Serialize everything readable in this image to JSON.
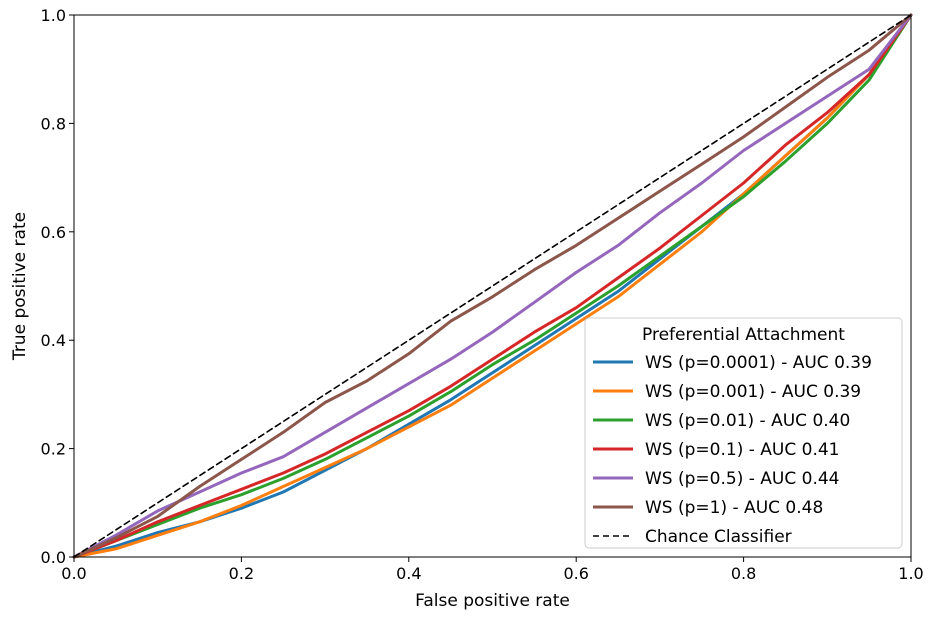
{
  "chart_data": {
    "type": "line",
    "xlabel": "False positive rate",
    "ylabel": "True positive rate",
    "xlim": [
      0.0,
      1.0
    ],
    "ylim": [
      0.0,
      1.0
    ],
    "xticks": [
      "0.0",
      "0.2",
      "0.4",
      "0.6",
      "0.8",
      "1.0"
    ],
    "yticks": [
      "0.0",
      "0.2",
      "0.4",
      "0.6",
      "0.8",
      "1.0"
    ],
    "grid": false,
    "legend": {
      "title": "Preferential Attachment",
      "placement": "lower-right"
    },
    "series": [
      {
        "name": "WS (p=0.0001) - AUC 0.39",
        "color": "#1f77b4",
        "style": "solid",
        "x": [
          0,
          0.05,
          0.1,
          0.15,
          0.2,
          0.25,
          0.3,
          0.35,
          0.4,
          0.45,
          0.5,
          0.55,
          0.6,
          0.65,
          0.7,
          0.75,
          0.8,
          0.85,
          0.9,
          0.95,
          1.0
        ],
        "y": [
          0,
          0.02,
          0.045,
          0.065,
          0.09,
          0.12,
          0.16,
          0.2,
          0.245,
          0.29,
          0.34,
          0.39,
          0.44,
          0.49,
          0.55,
          0.61,
          0.67,
          0.74,
          0.81,
          0.89,
          1.0
        ]
      },
      {
        "name": "WS (p=0.001) - AUC 0.39",
        "color": "#ff7f0e",
        "style": "solid",
        "x": [
          0,
          0.05,
          0.1,
          0.15,
          0.2,
          0.25,
          0.3,
          0.35,
          0.4,
          0.45,
          0.5,
          0.55,
          0.6,
          0.65,
          0.7,
          0.75,
          0.8,
          0.85,
          0.9,
          0.95,
          1.0
        ],
        "y": [
          0,
          0.015,
          0.04,
          0.065,
          0.095,
          0.13,
          0.165,
          0.2,
          0.24,
          0.28,
          0.33,
          0.38,
          0.43,
          0.48,
          0.54,
          0.6,
          0.67,
          0.74,
          0.81,
          0.89,
          1.0
        ]
      },
      {
        "name": "WS (p=0.01) - AUC 0.40",
        "color": "#2ca02c",
        "style": "solid",
        "x": [
          0,
          0.05,
          0.1,
          0.15,
          0.2,
          0.25,
          0.3,
          0.35,
          0.4,
          0.45,
          0.5,
          0.55,
          0.6,
          0.65,
          0.7,
          0.75,
          0.8,
          0.85,
          0.9,
          0.95,
          1.0
        ],
        "y": [
          0,
          0.03,
          0.06,
          0.09,
          0.115,
          0.145,
          0.18,
          0.22,
          0.26,
          0.305,
          0.355,
          0.4,
          0.45,
          0.5,
          0.555,
          0.61,
          0.665,
          0.73,
          0.8,
          0.88,
          1.0
        ]
      },
      {
        "name": "WS (p=0.1) - AUC 0.41",
        "color": "#d62728",
        "style": "solid",
        "x": [
          0,
          0.05,
          0.1,
          0.15,
          0.2,
          0.25,
          0.3,
          0.35,
          0.4,
          0.45,
          0.5,
          0.55,
          0.6,
          0.65,
          0.7,
          0.75,
          0.8,
          0.85,
          0.9,
          0.95,
          1.0
        ],
        "y": [
          0,
          0.03,
          0.065,
          0.095,
          0.125,
          0.155,
          0.19,
          0.23,
          0.27,
          0.315,
          0.365,
          0.415,
          0.46,
          0.515,
          0.57,
          0.63,
          0.69,
          0.76,
          0.82,
          0.89,
          1.0
        ]
      },
      {
        "name": "WS (p=0.5) - AUC 0.44",
        "color": "#9467bd",
        "style": "solid",
        "x": [
          0,
          0.05,
          0.1,
          0.15,
          0.2,
          0.25,
          0.3,
          0.35,
          0.4,
          0.45,
          0.5,
          0.55,
          0.6,
          0.65,
          0.7,
          0.75,
          0.8,
          0.85,
          0.9,
          0.95,
          1.0
        ],
        "y": [
          0,
          0.04,
          0.085,
          0.12,
          0.155,
          0.185,
          0.23,
          0.275,
          0.32,
          0.365,
          0.415,
          0.47,
          0.525,
          0.575,
          0.635,
          0.69,
          0.75,
          0.8,
          0.85,
          0.9,
          1.0
        ]
      },
      {
        "name": "WS (p=1) - AUC 0.48",
        "color": "#8c564b",
        "style": "solid",
        "x": [
          0,
          0.05,
          0.1,
          0.15,
          0.2,
          0.25,
          0.3,
          0.35,
          0.4,
          0.45,
          0.5,
          0.55,
          0.6,
          0.65,
          0.7,
          0.75,
          0.8,
          0.85,
          0.9,
          0.95,
          1.0
        ],
        "y": [
          0,
          0.035,
          0.075,
          0.13,
          0.18,
          0.23,
          0.285,
          0.325,
          0.375,
          0.435,
          0.48,
          0.53,
          0.575,
          0.625,
          0.675,
          0.725,
          0.775,
          0.83,
          0.885,
          0.935,
          1.0
        ]
      },
      {
        "name": "Chance Classifier",
        "color": "#000000",
        "style": "dashed",
        "x": [
          0,
          1
        ],
        "y": [
          0,
          1
        ]
      }
    ]
  }
}
